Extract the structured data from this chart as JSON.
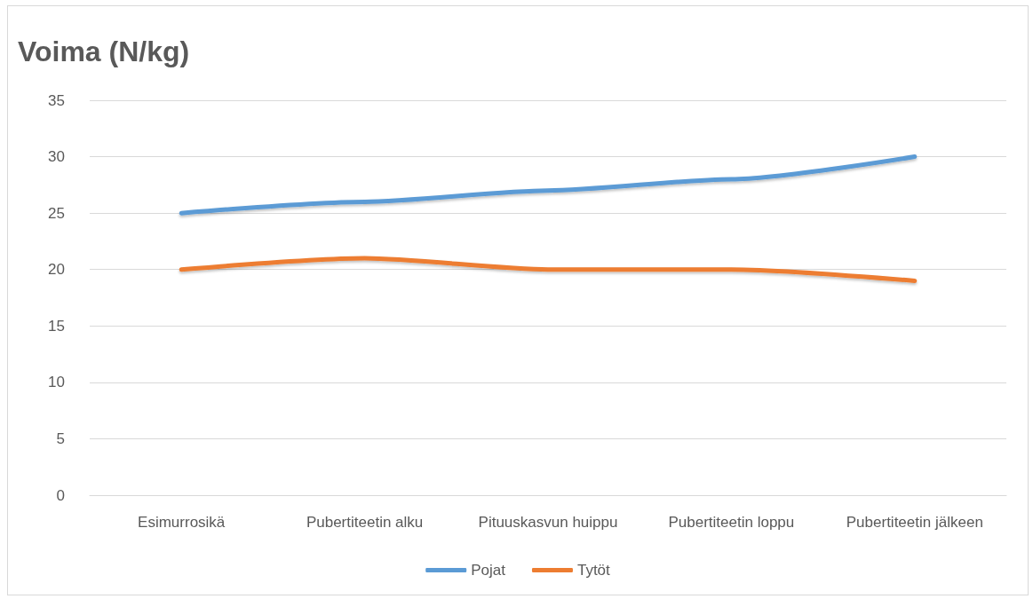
{
  "chart_data": {
    "type": "line",
    "title": "Voima (N/kg)",
    "categories": [
      "Esimurrosikä",
      "Pubertiteetin alku",
      "Pituuskasvun huippu",
      "Pubertiteetin loppu",
      "Pubertiteetin jälkeen"
    ],
    "series": [
      {
        "name": "Pojat",
        "color": "#5b9bd5",
        "values": [
          25,
          26,
          27,
          28,
          30
        ]
      },
      {
        "name": "Tytöt",
        "color": "#ed7d31",
        "values": [
          20,
          21,
          20,
          20,
          19
        ]
      }
    ],
    "ylim": [
      0,
      35
    ],
    "yticks": [
      0,
      5,
      10,
      15,
      20,
      25,
      30,
      35
    ],
    "grid": "y",
    "legend": "bottom",
    "marker": "none",
    "line_style": "solid"
  }
}
